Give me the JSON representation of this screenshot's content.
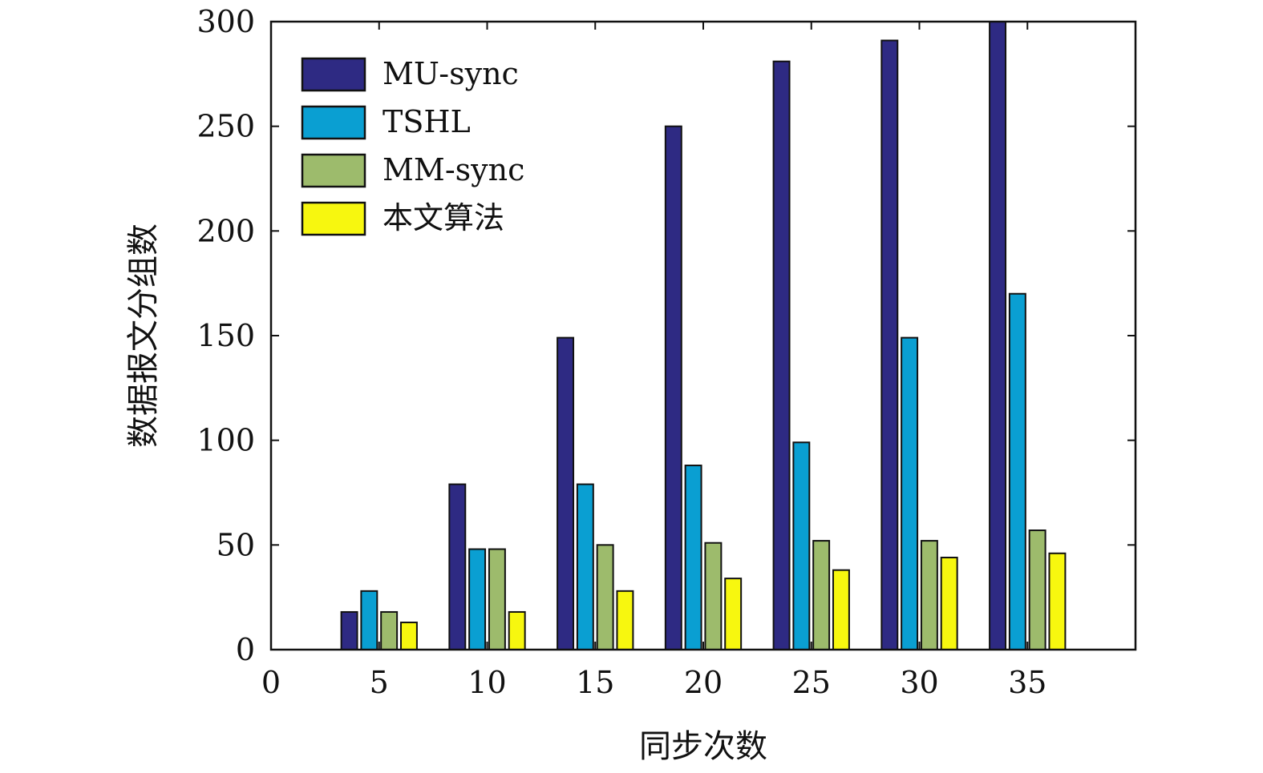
{
  "chart_data": {
    "type": "bar",
    "title": "",
    "xlabel": "同步次数",
    "ylabel": "数据报文分组数",
    "categories": [
      5,
      10,
      15,
      20,
      25,
      30,
      35
    ],
    "xlim": [
      0,
      40
    ],
    "ylim": [
      0,
      300
    ],
    "xticks": [
      "0",
      "5",
      "10",
      "15",
      "20",
      "25",
      "30",
      "35"
    ],
    "yticks": [
      "0",
      "50",
      "100",
      "150",
      "200",
      "250",
      "300"
    ],
    "grid": false,
    "legend_position": "top-left",
    "series": [
      {
        "name": "MU-sync",
        "color": "#2e2a83",
        "values": [
          18,
          79,
          149,
          250,
          281,
          291,
          300
        ]
      },
      {
        "name": "TSHL",
        "color": "#0a9fd2",
        "values": [
          28,
          48,
          79,
          88,
          99,
          149,
          170
        ]
      },
      {
        "name": "MM-sync",
        "color": "#9dbb6c",
        "values": [
          18,
          48,
          50,
          51,
          52,
          52,
          57
        ]
      },
      {
        "name": "本文算法",
        "color": "#f7f70f",
        "values": [
          13,
          18,
          28,
          34,
          38,
          44,
          46
        ]
      }
    ]
  }
}
